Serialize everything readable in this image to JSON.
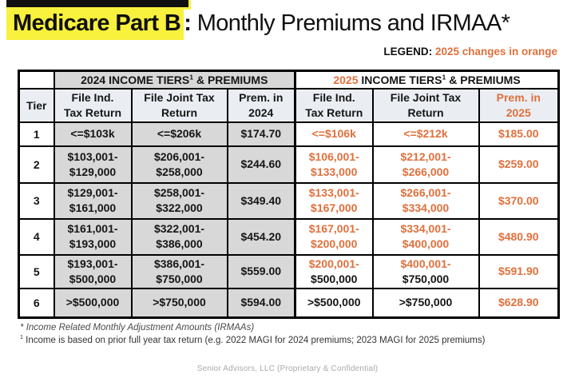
{
  "title": {
    "highlight": "Medicare Part B",
    "colon": ":",
    "rest": " Monthly Premiums and IRMAA*"
  },
  "legend": {
    "label": "LEGEND",
    "colon": ": ",
    "value": "2025 changes in orange"
  },
  "colors": {
    "orange": "#E0703C",
    "yellow": "#F8F13D",
    "cellgray": "#D8D8D8",
    "headertint": "#EAEEF3",
    "footergray": "#A9A9A9"
  },
  "table": {
    "tier_header": "Tier",
    "section_2024": {
      "year": "2024",
      "mid": " INCOME TIERS",
      "sup": "1",
      "tail": " & PREMIUMS"
    },
    "section_2025": {
      "year": "2025",
      "mid": " INCOME TIERS",
      "sup": "1",
      "tail": " & PREMIUMS"
    },
    "col_headers_2024": [
      [
        "File Ind.",
        "Tax Return"
      ],
      [
        "File Joint Tax",
        "Return"
      ],
      [
        "Prem. in",
        "2024"
      ]
    ],
    "col_headers_2025": [
      [
        "File Ind.",
        "Tax Return"
      ],
      [
        "File Joint Tax",
        "Return"
      ],
      [
        "Prem. in",
        "2025"
      ]
    ],
    "rows": [
      {
        "tier": "1",
        "y2024": [
          [
            "<=$103k"
          ],
          [
            "<=$206k"
          ],
          [
            "$174.70"
          ]
        ],
        "y2025": [
          [
            {
              "t": "<=$106k",
              "o": true
            }
          ],
          [
            {
              "t": "<=$212k",
              "o": true
            }
          ],
          [
            {
              "t": "$185.00",
              "o": true
            }
          ]
        ]
      },
      {
        "tier": "2",
        "y2024": [
          [
            "$103,001-",
            "$129,000"
          ],
          [
            "$206,001-",
            "$258,000"
          ],
          [
            "$244.60"
          ]
        ],
        "y2025": [
          [
            {
              "t": "$106,001-",
              "o": true
            },
            {
              "t": "$133,000",
              "o": true
            }
          ],
          [
            {
              "t": "$212,001-",
              "o": true
            },
            {
              "t": "$266,000",
              "o": true
            }
          ],
          [
            {
              "t": "$259.00",
              "o": true
            }
          ]
        ]
      },
      {
        "tier": "3",
        "y2024": [
          [
            "$129,001-",
            "$161,000"
          ],
          [
            "$258,001-",
            "$322,000"
          ],
          [
            "$349.40"
          ]
        ],
        "y2025": [
          [
            {
              "t": "$133,001-",
              "o": true
            },
            {
              "t": "$167,000",
              "o": true
            }
          ],
          [
            {
              "t": "$266,001-",
              "o": true
            },
            {
              "t": "$334,000",
              "o": true
            }
          ],
          [
            {
              "t": "$370.00",
              "o": true
            }
          ]
        ]
      },
      {
        "tier": "4",
        "y2024": [
          [
            "$161,001-",
            "$193,000"
          ],
          [
            "$322,001-",
            "$386,000"
          ],
          [
            "$454.20"
          ]
        ],
        "y2025": [
          [
            {
              "t": "$167,001-",
              "o": true
            },
            {
              "t": "$200,000",
              "o": true
            }
          ],
          [
            {
              "t": "$334,001-",
              "o": true
            },
            {
              "t": "$400,000",
              "o": true
            }
          ],
          [
            {
              "t": "$480.90",
              "o": true
            }
          ]
        ]
      },
      {
        "tier": "5",
        "y2024": [
          [
            "$193,001-",
            "$500,000"
          ],
          [
            "$386,001-",
            "$750,000"
          ],
          [
            "$559.00"
          ]
        ],
        "y2025": [
          [
            {
              "t": "$200,001-",
              "o": true
            },
            {
              "t": "$500,000",
              "o": false
            }
          ],
          [
            {
              "t": "$400,001-",
              "o": true
            },
            {
              "t": "$750,000",
              "o": false
            }
          ],
          [
            {
              "t": "$591.90",
              "o": true
            }
          ]
        ]
      },
      {
        "tier": "6",
        "y2024": [
          [
            ">$500,000"
          ],
          [
            ">$750,000"
          ],
          [
            "$594.00"
          ]
        ],
        "y2025": [
          [
            {
              "t": ">$500,000",
              "o": false
            }
          ],
          [
            {
              "t": ">$750,000",
              "o": false
            }
          ],
          [
            {
              "t": "$628.90",
              "o": true
            }
          ]
        ]
      }
    ]
  },
  "footnotes": {
    "irmaa": {
      "marker": "*",
      "text": "Income Related Monthly Adjustment Amounts (IRMAAs)"
    },
    "income": {
      "marker": "1",
      "text": "Income is based on prior full year tax return (e.g. 2022 MAGI for 2024 premiums; 2023 MAGI for 2025 premiums)"
    }
  },
  "footer": {
    "text": "Senior Advisors, LLC (Proprietary & Confidential)"
  }
}
